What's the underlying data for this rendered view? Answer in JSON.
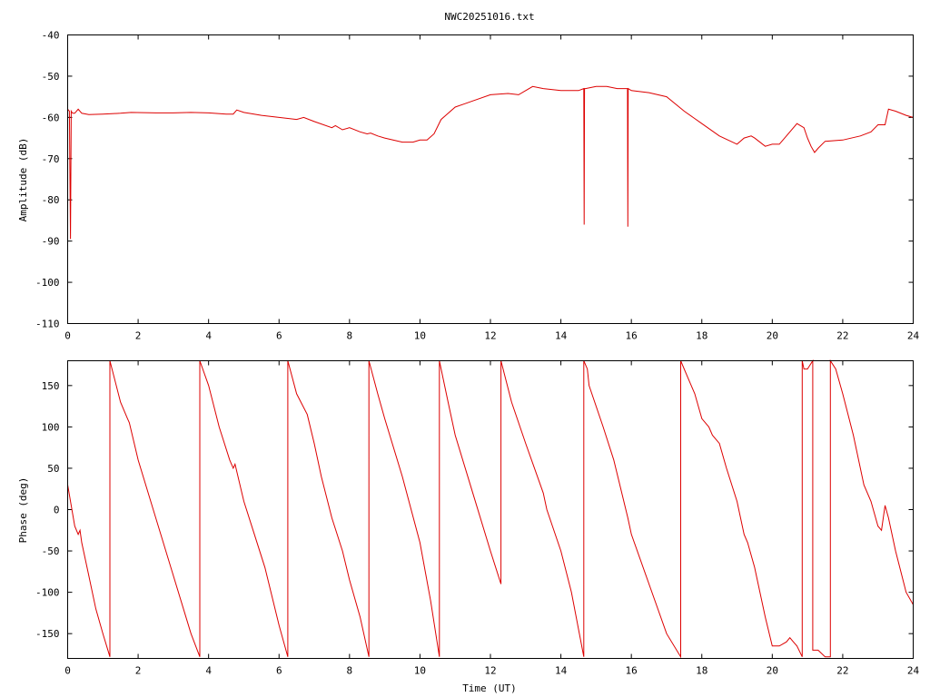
{
  "chart_data": [
    {
      "type": "line",
      "title": "NWC20251016.txt",
      "xlabel": "",
      "ylabel": "Amplitude (dB)",
      "xlim": [
        0,
        24
      ],
      "ylim": [
        -110,
        -40
      ],
      "x_ticks": [
        "0",
        "2",
        "4",
        "6",
        "8",
        "10",
        "12",
        "14",
        "16",
        "18",
        "20",
        "22",
        "24"
      ],
      "y_ticks": [
        "-40",
        "-50",
        "-60",
        "-70",
        "-80",
        "-90",
        "-100",
        "-110"
      ],
      "grid": false,
      "color": "#dd0000",
      "series": [
        {
          "x": [
            0.0,
            0.05,
            0.08,
            0.1,
            0.12,
            0.15,
            0.2,
            0.3,
            0.4,
            0.6,
            1.0,
            1.5,
            1.8,
            2.5,
            3.0,
            3.5,
            4.0,
            4.5,
            4.7,
            4.8,
            5.0,
            5.5,
            6.0,
            6.5,
            6.7,
            7.0,
            7.5,
            7.6,
            7.8,
            8.0,
            8.3,
            8.5,
            8.6,
            8.8,
            9.0,
            9.5,
            9.8,
            10.0,
            10.2,
            10.4,
            10.6,
            11.0,
            11.5,
            12.0,
            12.5,
            12.8,
            13.0,
            13.2,
            13.5,
            14.0,
            14.5,
            14.65,
            14.66,
            14.67,
            14.7,
            15.0,
            15.3,
            15.6,
            15.8,
            15.89,
            15.9,
            15.91,
            16.0,
            16.5,
            17.0,
            17.5,
            18.0,
            18.5,
            19.0,
            19.2,
            19.4,
            19.5,
            19.8,
            20.0,
            20.2,
            20.4,
            20.7,
            20.9,
            21.0,
            21.1,
            21.2,
            21.3,
            21.5,
            22.0,
            22.5,
            22.8,
            23.0,
            23.2,
            23.3,
            23.5,
            23.8,
            24.0
          ],
          "y": [
            -58,
            -58.5,
            -89.5,
            -58.5,
            -58.8,
            -59,
            -59,
            -58,
            -59,
            -59.3,
            -59.2,
            -59,
            -58.8,
            -58.9,
            -58.9,
            -58.8,
            -58.9,
            -59.2,
            -59.2,
            -58.2,
            -58.8,
            -59.5,
            -60,
            -60.5,
            -60,
            -61,
            -62.5,
            -62,
            -63,
            -62.5,
            -63.5,
            -64,
            -63.8,
            -64.5,
            -65,
            -66,
            -66,
            -65.5,
            -65.5,
            -64,
            -60.5,
            -57.5,
            -56,
            -54.5,
            -54.2,
            -54.5,
            -53.5,
            -52.5,
            -53,
            -53.5,
            -53.5,
            -53,
            -86,
            -53,
            -53,
            -52.5,
            -52.5,
            -53,
            -53,
            -53,
            -86.5,
            -53,
            -53.5,
            -54,
            -55,
            -58.5,
            -61.5,
            -64.5,
            -66.5,
            -65,
            -64.5,
            -65,
            -67,
            -66.5,
            -66.5,
            -64.5,
            -61.5,
            -62.5,
            -65,
            -67,
            -68.5,
            -67.5,
            -65.8,
            -65.5,
            -64.5,
            -63.5,
            -61.8,
            -61.8,
            -58,
            -58.5,
            -59.5,
            -60
          ]
        }
      ]
    },
    {
      "type": "line",
      "title": "",
      "xlabel": "Time (UT)",
      "ylabel": "Phase (deg)",
      "xlim": [
        0,
        24
      ],
      "ylim": [
        -180,
        180
      ],
      "x_ticks": [
        "0",
        "2",
        "4",
        "6",
        "8",
        "10",
        "12",
        "14",
        "16",
        "18",
        "20",
        "22",
        "24"
      ],
      "y_ticks": [
        "150",
        "100",
        "50",
        "0",
        "-50",
        "-100",
        "-150"
      ],
      "grid": false,
      "color": "#dd0000",
      "series": [
        {
          "x": [
            0.0,
            0.2,
            0.3,
            0.35,
            0.4,
            0.6,
            0.8,
            1.0,
            1.2,
            1.2,
            1.5,
            1.7,
            1.75,
            2.0,
            2.5,
            3.0,
            3.5,
            3.75,
            3.75,
            4.0,
            4.3,
            4.6,
            4.7,
            4.75,
            5.0,
            5.3,
            5.6,
            6.0,
            6.25,
            6.25,
            6.5,
            6.8,
            7.0,
            7.2,
            7.5,
            7.8,
            8.0,
            8.3,
            8.55,
            8.55,
            8.8,
            9.0,
            9.5,
            10.0,
            10.3,
            10.55,
            10.55,
            10.8,
            11.0,
            11.5,
            12.0,
            12.3,
            12.3,
            12.6,
            13.0,
            13.5,
            13.6,
            14.0,
            14.3,
            14.65,
            14.65,
            14.75,
            14.8,
            15.2,
            15.5,
            15.9,
            16.0,
            16.5,
            17.0,
            17.4,
            17.4,
            17.6,
            17.8,
            18.0,
            18.2,
            18.3,
            18.5,
            18.7,
            19.0,
            19.2,
            19.3,
            19.5,
            19.8,
            20.0,
            20.2,
            20.4,
            20.5,
            20.6,
            20.7,
            20.85,
            20.85,
            20.9,
            21.0,
            21.15,
            21.15,
            21.3,
            21.5,
            21.65,
            21.65,
            21.8,
            22.0,
            22.3,
            22.6,
            22.8,
            23.0,
            23.1,
            23.2,
            23.3,
            23.5,
            23.8,
            24.0
          ],
          "y": [
            30,
            -20,
            -30,
            -25,
            -40,
            -80,
            -120,
            -150,
            -178,
            180,
            130,
            110,
            105,
            60,
            -10,
            -80,
            -150,
            -178,
            180,
            150,
            100,
            60,
            50,
            55,
            10,
            -30,
            -70,
            -140,
            -178,
            180,
            140,
            115,
            80,
            40,
            -10,
            -50,
            -85,
            -130,
            -178,
            180,
            140,
            110,
            40,
            -40,
            -110,
            -178,
            180,
            130,
            90,
            20,
            -50,
            -90,
            180,
            130,
            80,
            20,
            0,
            -50,
            -100,
            -178,
            180,
            170,
            150,
            100,
            60,
            -10,
            -30,
            -90,
            -150,
            -178,
            180,
            160,
            140,
            110,
            100,
            90,
            80,
            50,
            10,
            -30,
            -40,
            -70,
            -130,
            -165,
            -165,
            -160,
            -155,
            -160,
            -165,
            -178,
            180,
            170,
            170,
            180,
            -170,
            -170,
            -178,
            -178,
            180,
            170,
            140,
            90,
            30,
            10,
            -20,
            -25,
            5,
            -10,
            -50,
            -100,
            -115
          ]
        }
      ]
    }
  ]
}
